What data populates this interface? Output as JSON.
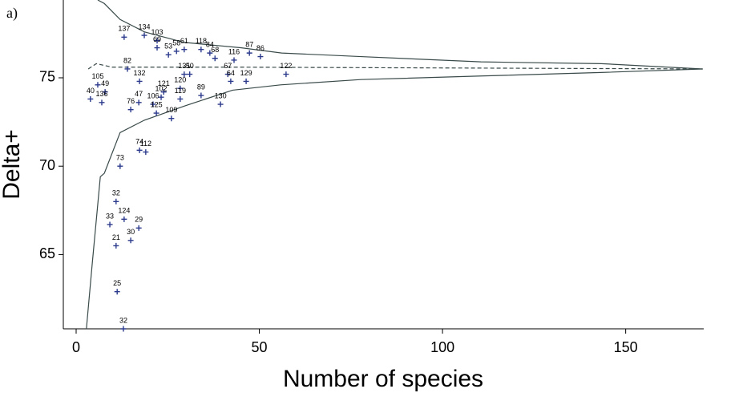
{
  "chart_data": {
    "type": "scatter",
    "panel_label": "a)",
    "xlabel": "Number of species",
    "ylabel": "Delta+",
    "xlim": [
      -3.5,
      171.3
    ],
    "ylim": [
      60.8,
      79.4
    ],
    "xticks": [
      0,
      50,
      100,
      150
    ],
    "yticks": [
      65,
      70,
      75
    ],
    "marker_color": "#2b3a8c",
    "line_color": "#3a4a4a",
    "points": {
      "labels": [
        "137",
        "134",
        "103",
        "69",
        "53",
        "58",
        "61",
        "118",
        "84",
        "68",
        "116",
        "87",
        "86",
        "122",
        "82",
        "105",
        "132",
        "49",
        "40",
        "136",
        "76",
        "47",
        "106",
        "125",
        "109",
        "121",
        "102",
        "120",
        "119",
        "131",
        "50",
        "89",
        "130",
        "67",
        "64",
        "129",
        "74",
        "112",
        "73",
        "32",
        "33",
        "124",
        "29",
        "21",
        "30",
        "25",
        "32"
      ],
      "x": [
        13.1,
        18.6,
        22.1,
        22.1,
        25.2,
        27.4,
        29.5,
        34.1,
        36.5,
        37.9,
        43.1,
        47.3,
        50.3,
        57.3,
        14.0,
        5.9,
        17.3,
        7.9,
        3.9,
        7.0,
        14.9,
        17.1,
        21.0,
        21.9,
        26.0,
        23.9,
        23.2,
        28.4,
        28.4,
        29.5,
        31.0,
        34.1,
        39.4,
        41.4,
        42.2,
        46.4,
        17.3,
        19.0,
        12.0,
        10.9,
        9.2,
        13.1,
        17.1,
        10.9,
        14.9,
        11.2,
        12.9
      ],
      "y": [
        77.3,
        77.4,
        77.1,
        76.7,
        76.3,
        76.5,
        76.6,
        76.6,
        76.4,
        76.1,
        76.0,
        76.4,
        76.2,
        75.2,
        75.5,
        74.6,
        74.8,
        74.2,
        73.8,
        73.6,
        73.2,
        73.6,
        73.5,
        73.0,
        72.7,
        74.2,
        73.9,
        74.4,
        73.8,
        75.2,
        75.2,
        74.0,
        73.5,
        75.2,
        74.8,
        74.8,
        70.9,
        70.8,
        70.0,
        68.0,
        66.7,
        67.0,
        66.5,
        65.5,
        65.8,
        62.9,
        60.8
      ]
    },
    "lines": [
      {
        "dash": false,
        "x": [
          5.9,
          7.7,
          12.0,
          18.6,
          29.5,
          44.9,
          56.1,
          77.7,
          110.5,
          143.3,
          171
        ],
        "y": [
          79.4,
          79.2,
          78.3,
          77.6,
          77.0,
          76.7,
          76.4,
          76.2,
          75.9,
          75.8,
          75.5
        ]
      },
      {
        "dash": false,
        "x": [
          2.8,
          4.4,
          6.6,
          7.7,
          12.0,
          18.6,
          29.5,
          42.7,
          55.8,
          77.7,
          110.5,
          143.3,
          171
        ],
        "y": [
          60.8,
          64.5,
          69.4,
          69.6,
          71.9,
          72.6,
          73.4,
          74.3,
          74.6,
          74.9,
          75.1,
          75.3,
          75.5
        ]
      },
      {
        "dash": true,
        "x": [
          3.3,
          5.5,
          9.8,
          44.9,
          171
        ],
        "y": [
          75.5,
          75.8,
          75.6,
          75.6,
          75.5
        ]
      }
    ]
  }
}
